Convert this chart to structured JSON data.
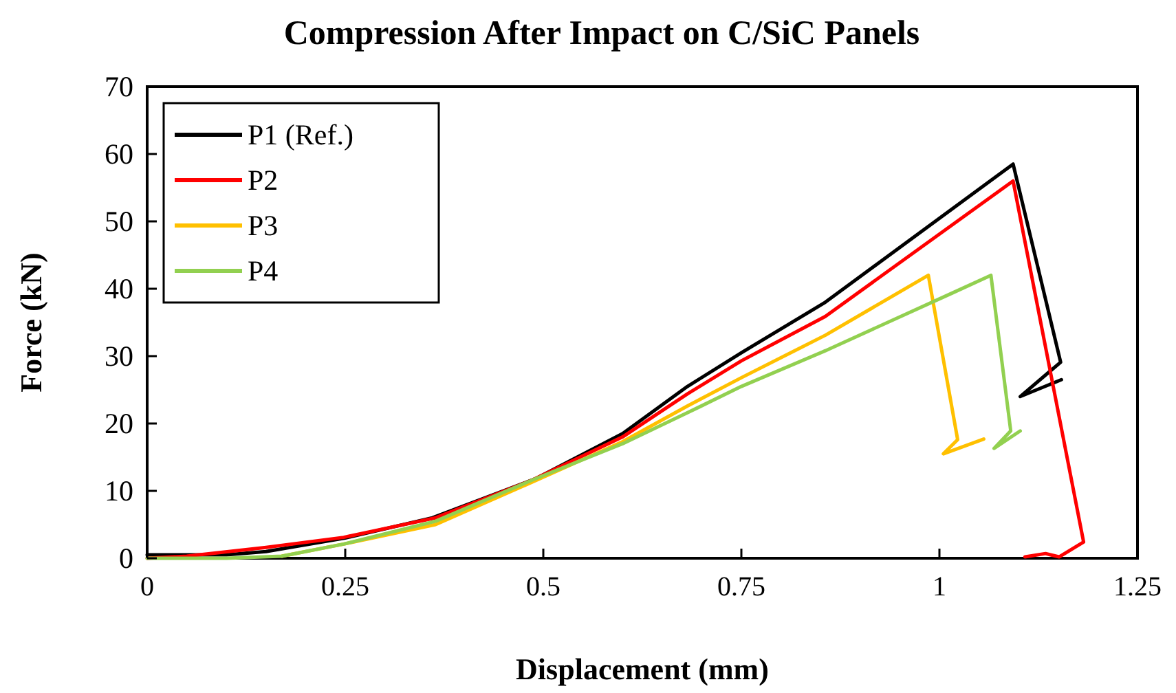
{
  "chart_data": {
    "type": "line",
    "title": "Compression After Impact on C/SiC Panels",
    "xlabel": "Displacement (mm)",
    "ylabel": "Force (kN)",
    "xlim": [
      0,
      1.25
    ],
    "xticks": [
      0,
      0.25,
      0.5,
      0.75,
      1,
      1.25
    ],
    "ylim": [
      0,
      70
    ],
    "yticks": [
      0,
      10,
      20,
      30,
      40,
      50,
      60,
      70
    ],
    "grid": false,
    "legend": "top left",
    "marker": "none",
    "line_style": "solid",
    "series": [
      {
        "name": "P1 (Ref.)",
        "color": "#000000",
        "x": [
          0,
          0.1,
          0.15,
          0.25,
          0.36,
          0.49,
          0.6,
          0.682,
          0.75,
          0.856,
          1.093,
          1.153,
          1.102,
          1.154
        ],
        "values": [
          0.5,
          0.5,
          1,
          3,
          6,
          11.8,
          18.5,
          25.5,
          30.5,
          38,
          58.5,
          29.1,
          24,
          26.5
        ]
      },
      {
        "name": "P2",
        "color": "#ff0000",
        "x": [
          0,
          0.05,
          0.15,
          0.248,
          0.364,
          0.486,
          0.6,
          0.682,
          0.75,
          0.856,
          1.093,
          1.182,
          1.151,
          1.134,
          1.108
        ],
        "values": [
          0,
          0.3,
          1.6,
          3.1,
          6,
          11.6,
          18,
          24.4,
          29.3,
          35.9,
          56,
          2.4,
          0.2,
          0.7,
          0.2
        ]
      },
      {
        "name": "P3",
        "color": "#ffc000",
        "x": [
          0.17,
          0.248,
          0.364,
          0.486,
          0.6,
          0.682,
          0.75,
          0.856,
          0.986,
          1.023,
          1.005,
          1.056
        ],
        "values": [
          0.3,
          2.1,
          5,
          11.3,
          17.3,
          22.6,
          26.8,
          33.1,
          42,
          17.6,
          15.5,
          17.7
        ]
      },
      {
        "name": "P4",
        "color": "#92d050",
        "x": [
          0,
          0.1,
          0.17,
          0.248,
          0.364,
          0.486,
          0.6,
          0.682,
          0.75,
          0.856,
          1.015,
          1.065,
          1.09,
          1.069,
          1.102
        ],
        "values": [
          0,
          0,
          0.3,
          2.1,
          5.5,
          11.6,
          17,
          21.6,
          25.5,
          30.8,
          39.3,
          42,
          18.9,
          16.3,
          18.9
        ]
      }
    ]
  }
}
